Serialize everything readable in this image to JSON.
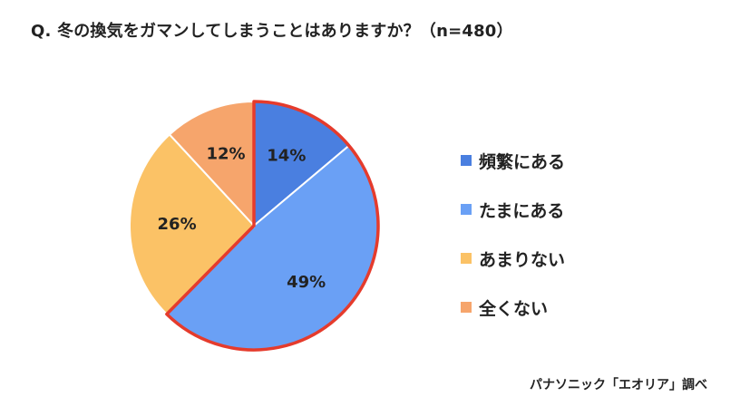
{
  "title": "Q. 冬の換気をガマンしてしまうことはありますか？（n=480）",
  "source": "パナソニック「エオリア」調べ",
  "colors": {
    "highlight_border": "#e53b2c",
    "slice_border": "#ffffff",
    "label": "#222222"
  },
  "chart_data": {
    "type": "pie",
    "start": "12 o'clock",
    "direction": "clockwise",
    "highlighted": [
      "頻繁にある",
      "たまにある"
    ],
    "slices": [
      {
        "label": "頻繁にある",
        "value": 14,
        "display": "14%",
        "color": "#4a7fe0"
      },
      {
        "label": "たまにある",
        "value": 49,
        "display": "49%",
        "color": "#6aa0f5"
      },
      {
        "label": "あまりない",
        "value": 26,
        "display": "26%",
        "color": "#fbc266"
      },
      {
        "label": "全くない",
        "value": 12,
        "display": "12%",
        "color": "#f6a56c"
      }
    ],
    "legend_position": "right"
  }
}
